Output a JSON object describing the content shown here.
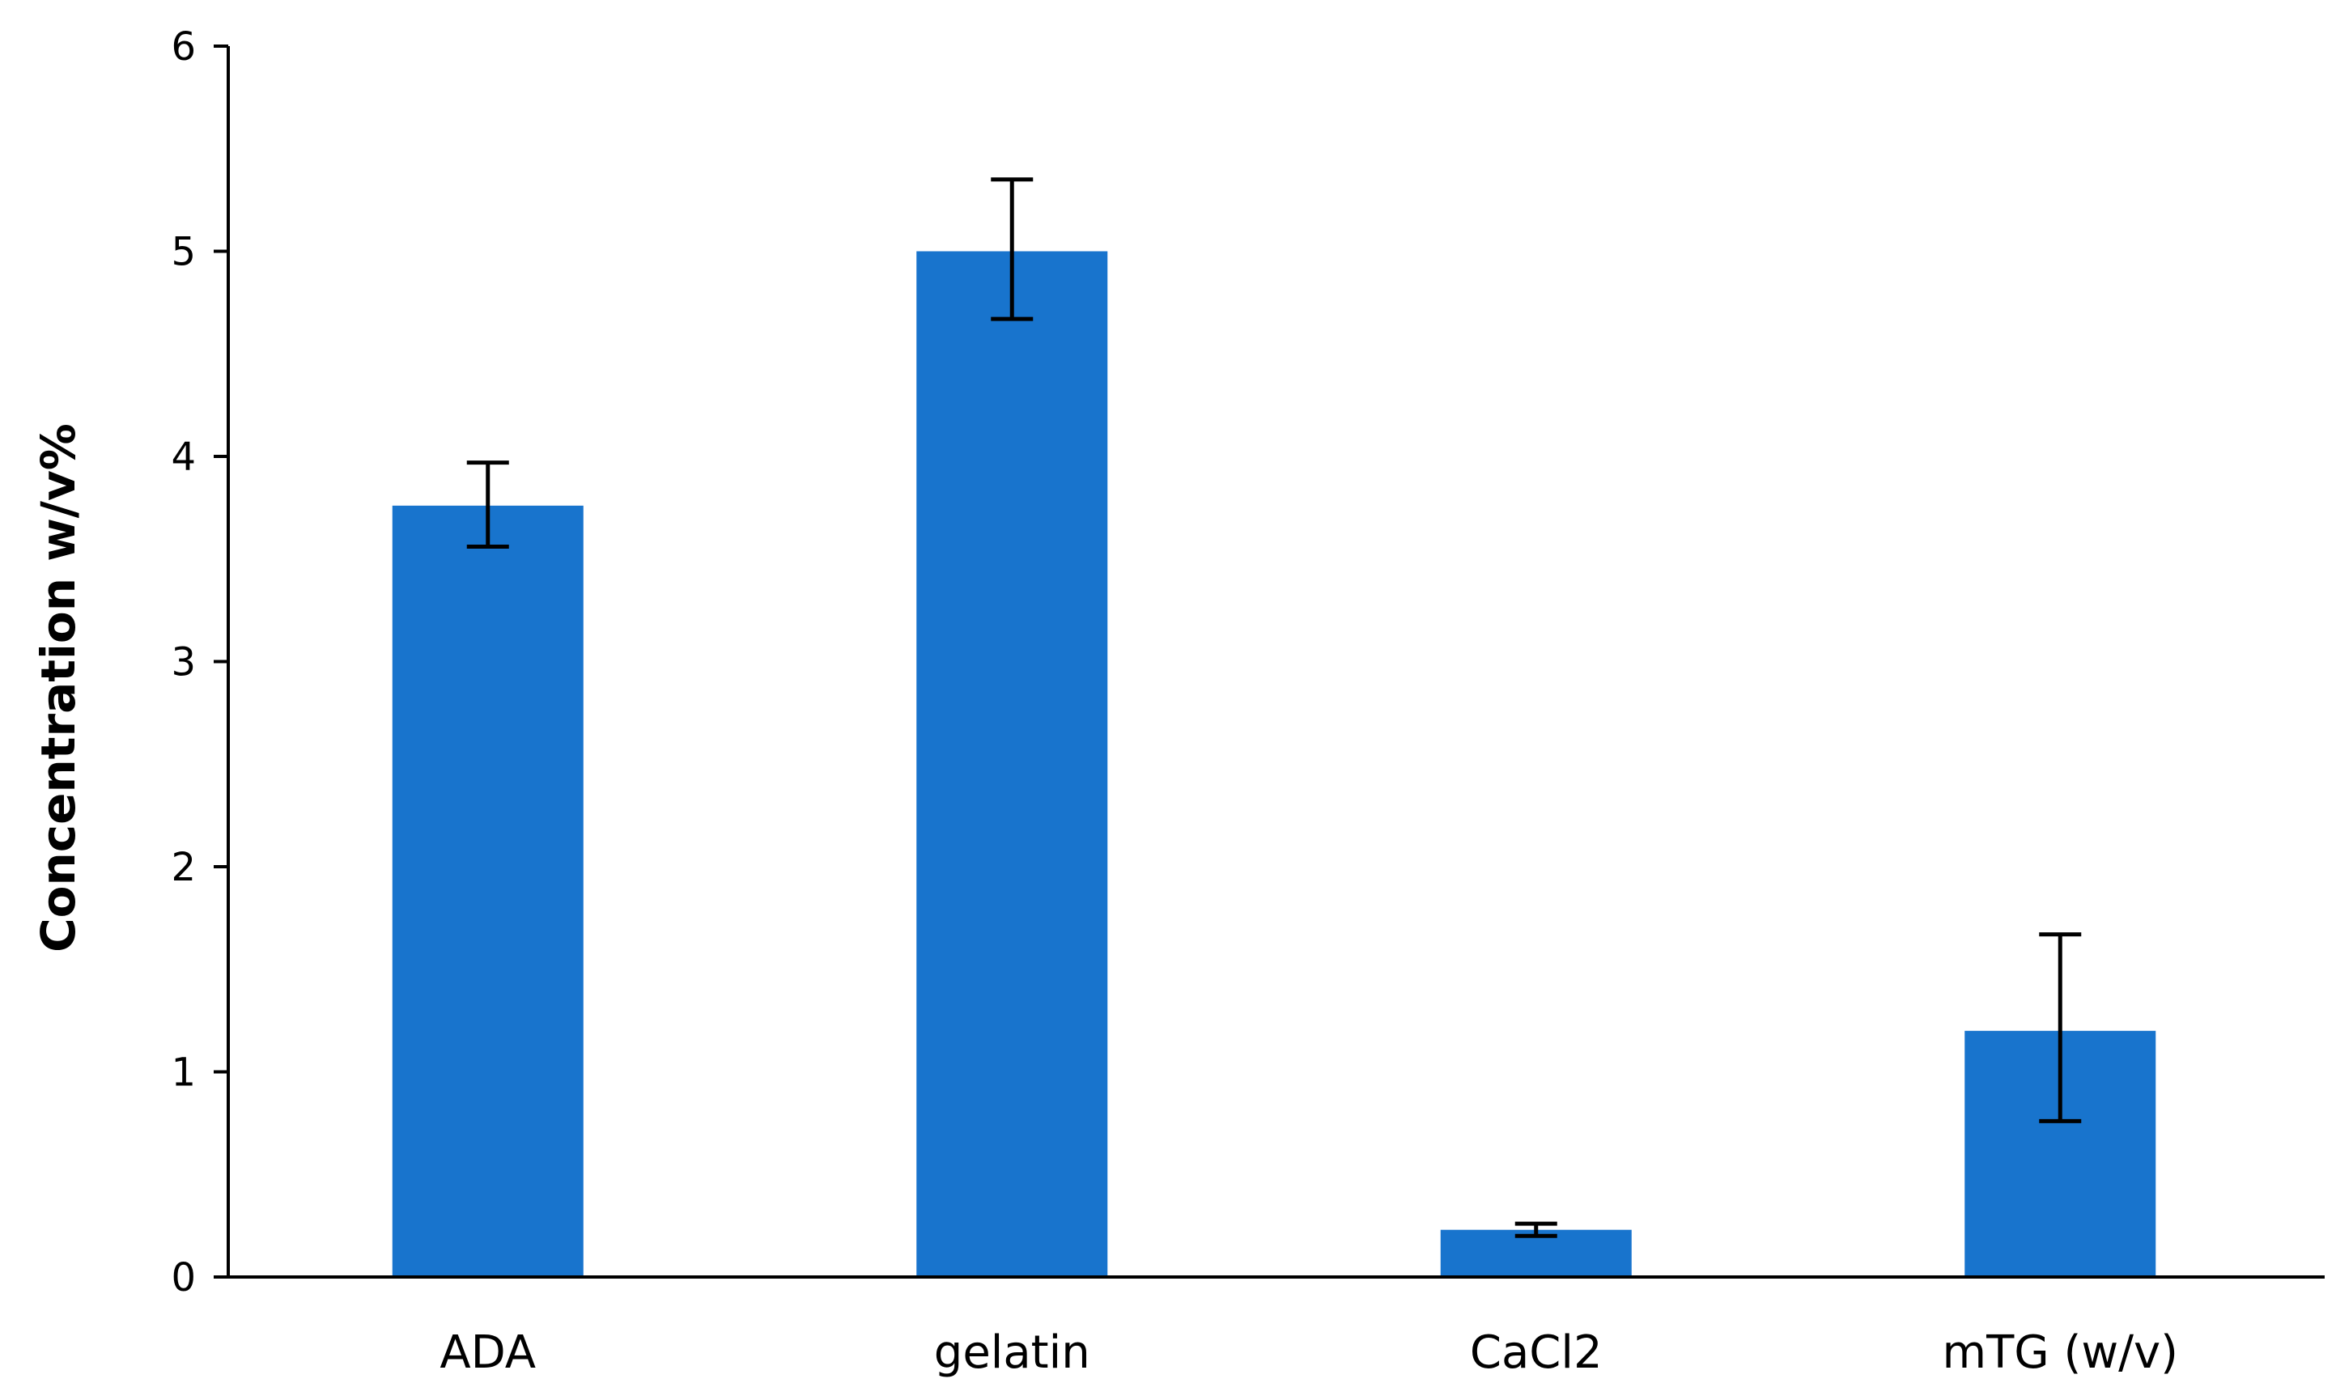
{
  "chart_data": {
    "type": "bar",
    "title": "",
    "xlabel": "",
    "ylabel": "Concentration w/v%",
    "ylim": [
      0,
      6
    ],
    "yticks": [
      0,
      1,
      2,
      3,
      4,
      5,
      6
    ],
    "grid": false,
    "legend": "none",
    "bar_color": "#1874CD",
    "categories": [
      "ADA",
      "gelatin",
      "CaCl2",
      "mTG (w/v)"
    ],
    "values": [
      3.76,
      5.0,
      0.23,
      1.2
    ],
    "error_low": [
      3.56,
      4.67,
      0.2,
      0.76
    ],
    "error_high": [
      3.97,
      5.35,
      0.26,
      1.67
    ]
  }
}
